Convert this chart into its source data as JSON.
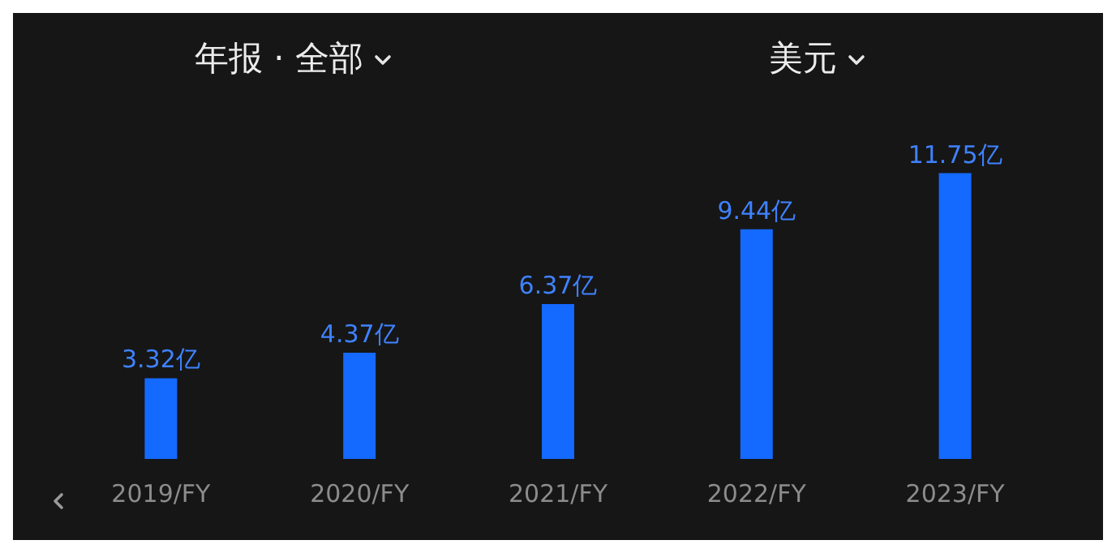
{
  "chart_data": {
    "type": "bar",
    "annotations": [
      "年报 · 全部",
      "美元"
    ],
    "categories": [
      "2019/FY",
      "2020/FY",
      "2021/FY",
      "2022/FY",
      "2023/FY"
    ],
    "values": [
      3.32,
      4.37,
      6.37,
      9.44,
      11.75
    ],
    "value_labels": [
      "3.32亿",
      "4.37亿",
      "6.37亿",
      "9.44亿",
      "11.75亿"
    ],
    "color": "#1469ff"
  }
}
